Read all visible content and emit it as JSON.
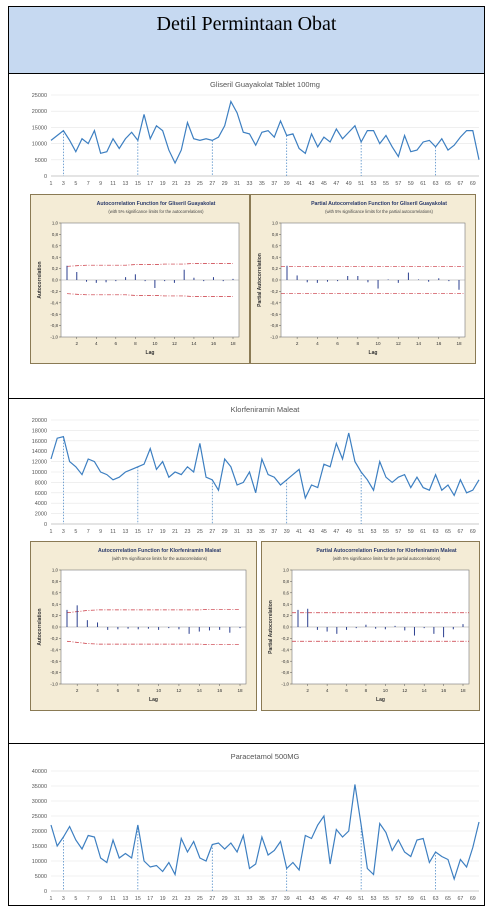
{
  "header": {
    "title": "Detil Permintaan Obat"
  },
  "chart_data": [
    {
      "type": "line",
      "title": "Gliseril Guayakolat Tablet 100mg",
      "ylim": [
        0,
        25000
      ],
      "yticks": [
        0,
        5000,
        10000,
        15000,
        20000,
        25000
      ],
      "xticks": [
        "1",
        "3",
        "5",
        "7",
        "9",
        "11",
        "13",
        "15",
        "17",
        "19",
        "21",
        "23",
        "25",
        "27",
        "29",
        "31",
        "33",
        "35",
        "37",
        "39",
        "41",
        "43",
        "45",
        "47",
        "49",
        "51",
        "53",
        "55",
        "57",
        "59",
        "61",
        "63",
        "65",
        "67",
        "69"
      ],
      "x": [
        1,
        2,
        3,
        4,
        5,
        6,
        7,
        8,
        9,
        10,
        11,
        12,
        13,
        14,
        15,
        16,
        17,
        18,
        19,
        20,
        21,
        22,
        23,
        24,
        25,
        26,
        27,
        28,
        29,
        30,
        31,
        32,
        33,
        34,
        35,
        36,
        37,
        38,
        39,
        40,
        41,
        42,
        43,
        44,
        45,
        46,
        47,
        48,
        49,
        50,
        51,
        52,
        53,
        54,
        55,
        56,
        57,
        58,
        59,
        60,
        61,
        62,
        63,
        64,
        65,
        66,
        67,
        68,
        69,
        70
      ],
      "values": [
        11000,
        12500,
        14000,
        11000,
        7500,
        11500,
        10000,
        14000,
        7000,
        7500,
        11500,
        8500,
        11500,
        13500,
        11000,
        19000,
        11500,
        15500,
        14000,
        8000,
        4000,
        8000,
        16500,
        11500,
        11000,
        11500,
        11000,
        12000,
        15500,
        23000,
        19500,
        13500,
        13000,
        9500,
        13500,
        14000,
        12000,
        17000,
        12500,
        13000,
        8500,
        7000,
        13000,
        9000,
        12000,
        10500,
        14500,
        11500,
        13500,
        15500,
        10500,
        14000,
        14000,
        10000,
        12500,
        9000,
        6000,
        12500,
        7500,
        8000,
        10500,
        11000,
        9000,
        11500,
        8000,
        9500,
        12000,
        14000,
        14000,
        5000
      ],
      "dashed_at": [
        3,
        15,
        27,
        39,
        51,
        63
      ],
      "series": [
        {
          "color": "#3d7fc1"
        }
      ]
    },
    {
      "type": "bar",
      "title": "Autocorrelation Function for Gliseril Guayakolat",
      "subtitle": "(with 5% significance limits for the autocorrelations)",
      "ylabel": "Autocorrelation",
      "xlabel": "Lag",
      "ylim": [
        -1.0,
        1.0
      ],
      "yticks": [
        "-1,0",
        "-0,8",
        "-0,6",
        "-0,4",
        "-0,2",
        "0,0",
        "0,2",
        "0,4",
        "0,6",
        "0,8",
        "1,0"
      ],
      "xticks": [
        "2",
        "4",
        "6",
        "8",
        "10",
        "12",
        "14",
        "16",
        "18"
      ],
      "lags": [
        1,
        2,
        3,
        4,
        5,
        6,
        7,
        8,
        9,
        10,
        11,
        12,
        13,
        14,
        15,
        16,
        17,
        18
      ],
      "values": [
        0.25,
        0.14,
        -0.03,
        -0.05,
        -0.04,
        -0.02,
        0.05,
        0.1,
        -0.02,
        -0.14,
        -0.02,
        -0.05,
        0.18,
        0.04,
        -0.02,
        0.05,
        -0.02,
        0.02
      ],
      "limits": [
        0.24,
        0.25,
        0.26,
        0.26,
        0.26,
        0.26,
        0.26,
        0.27,
        0.27,
        0.27,
        0.28,
        0.28,
        0.28,
        0.29,
        0.29,
        0.29,
        0.29,
        0.29
      ]
    },
    {
      "type": "bar",
      "title": "Partial Autocorrelation Function for Gliseril Guayakolat",
      "subtitle": "(with 5% significance limits for the partial autocorrelations)",
      "ylabel": "Partial Autocorrelation",
      "xlabel": "Lag",
      "ylim": [
        -1.0,
        1.0
      ],
      "yticks": [
        "-1,0",
        "-0,8",
        "-0,6",
        "-0,4",
        "-0,2",
        "0,0",
        "0,2",
        "0,4",
        "0,6",
        "0,8",
        "1,0"
      ],
      "xticks": [
        "2",
        "4",
        "6",
        "8",
        "10",
        "12",
        "14",
        "16",
        "18"
      ],
      "lags": [
        1,
        2,
        3,
        4,
        5,
        6,
        7,
        8,
        9,
        10,
        11,
        12,
        13,
        14,
        15,
        16,
        17,
        18
      ],
      "values": [
        0.25,
        0.08,
        -0.04,
        -0.05,
        -0.03,
        -0.02,
        0.07,
        0.07,
        -0.04,
        -0.15,
        0.01,
        -0.05,
        0.13,
        0.01,
        -0.03,
        0.03,
        -0.02,
        -0.17
      ],
      "limit": 0.24
    },
    {
      "type": "line",
      "title": "Klorfeniramin Maleat",
      "ylim": [
        0,
        20000
      ],
      "yticks": [
        0,
        2000,
        4000,
        6000,
        8000,
        10000,
        12000,
        14000,
        16000,
        18000,
        20000
      ],
      "xticks": [
        "1",
        "3",
        "5",
        "7",
        "9",
        "11",
        "13",
        "15",
        "17",
        "19",
        "21",
        "23",
        "25",
        "27",
        "29",
        "31",
        "33",
        "35",
        "37",
        "39",
        "41",
        "43",
        "45",
        "47",
        "49",
        "51",
        "53",
        "55",
        "57",
        "59",
        "61",
        "63",
        "65",
        "67",
        "69"
      ],
      "x": [
        1,
        2,
        3,
        4,
        5,
        6,
        7,
        8,
        9,
        10,
        11,
        12,
        13,
        14,
        15,
        16,
        17,
        18,
        19,
        20,
        21,
        22,
        23,
        24,
        25,
        26,
        27,
        28,
        29,
        30,
        31,
        32,
        33,
        34,
        35,
        36,
        37,
        38,
        39,
        40,
        41,
        42,
        43,
        44,
        45,
        46,
        47,
        48,
        49,
        50,
        51,
        52,
        53,
        54,
        55,
        56,
        57,
        58,
        59,
        60,
        61,
        62,
        63,
        64,
        65,
        66,
        67,
        68,
        69,
        70
      ],
      "values": [
        12500,
        16500,
        16800,
        12000,
        11000,
        9500,
        12500,
        12000,
        10000,
        9500,
        8500,
        9000,
        10000,
        10500,
        11000,
        11500,
        14500,
        10500,
        12000,
        9000,
        10000,
        9500,
        11000,
        10000,
        15500,
        9000,
        8500,
        6500,
        12500,
        11000,
        7500,
        8000,
        10000,
        6000,
        12500,
        9500,
        9000,
        7500,
        8500,
        9500,
        10500,
        5000,
        7500,
        7000,
        11500,
        11000,
        15500,
        12500,
        17500,
        12000,
        10000,
        8500,
        6500,
        12000,
        9000,
        8000,
        9000,
        9500,
        7000,
        9000,
        7000,
        6500,
        9500,
        6500,
        7500,
        5500,
        8500,
        6000,
        6500,
        8500
      ],
      "dashed_at": [
        3,
        15,
        27,
        39,
        51
      ],
      "series": [
        {
          "color": "#3d7fc1"
        }
      ]
    },
    {
      "type": "bar",
      "title": "Autocorrelation Function for Klorfeniramin Maleat",
      "subtitle": "(with 5% significance limits for the autocorrelations)",
      "ylabel": "Autocorrelation",
      "xlabel": "Lag",
      "ylim": [
        -1.0,
        1.0
      ],
      "yticks": [
        "-1,0",
        "-0,8",
        "-0,6",
        "-0,4",
        "-0,2",
        "0,0",
        "0,2",
        "0,4",
        "0,6",
        "0,8",
        "1,0"
      ],
      "xticks": [
        "2",
        "4",
        "6",
        "8",
        "10",
        "12",
        "14",
        "16",
        "18"
      ],
      "lags": [
        1,
        2,
        3,
        4,
        5,
        6,
        7,
        8,
        9,
        10,
        11,
        12,
        13,
        14,
        15,
        16,
        17,
        18
      ],
      "values": [
        0.3,
        0.38,
        0.12,
        0.08,
        -0.05,
        -0.04,
        -0.03,
        -0.04,
        -0.03,
        -0.05,
        -0.02,
        -0.04,
        -0.12,
        -0.08,
        -0.06,
        -0.05,
        -0.1,
        -0.02
      ],
      "limits": [
        0.25,
        0.27,
        0.29,
        0.3,
        0.3,
        0.3,
        0.3,
        0.3,
        0.3,
        0.3,
        0.3,
        0.3,
        0.3,
        0.3,
        0.31,
        0.31,
        0.31,
        0.31
      ]
    },
    {
      "type": "bar",
      "title": "Partial Autocorrelation Function for Klorfeniramin Maleat",
      "subtitle": "(with 5% significance limits for the partial autocorrelations)",
      "ylabel": "Partial Autocorrelation",
      "xlabel": "Lag",
      "ylim": [
        -1.0,
        1.0
      ],
      "yticks": [
        "-1,0",
        "-0,8",
        "-0,6",
        "-0,4",
        "-0,2",
        "0,0",
        "0,2",
        "0,4",
        "0,6",
        "0,8",
        "1,0"
      ],
      "xticks": [
        "2",
        "4",
        "6",
        "8",
        "10",
        "12",
        "14",
        "16",
        "18"
      ],
      "lags": [
        1,
        2,
        3,
        4,
        5,
        6,
        7,
        8,
        9,
        10,
        11,
        12,
        13,
        14,
        15,
        16,
        17,
        18
      ],
      "values": [
        0.3,
        0.32,
        -0.05,
        -0.08,
        -0.12,
        -0.05,
        -0.02,
        0.04,
        -0.03,
        -0.04,
        0.02,
        -0.06,
        -0.15,
        -0.02,
        -0.12,
        -0.18,
        -0.04,
        0.05
      ],
      "limit": 0.25
    },
    {
      "type": "line",
      "title": "Paracetamol 500MG",
      "ylim": [
        0,
        40000
      ],
      "yticks": [
        0,
        5000,
        10000,
        15000,
        20000,
        25000,
        30000,
        35000,
        40000
      ],
      "xticks": [
        "1",
        "3",
        "5",
        "7",
        "9",
        "11",
        "13",
        "15",
        "17",
        "19",
        "21",
        "23",
        "25",
        "27",
        "29",
        "31",
        "33",
        "35",
        "37",
        "39",
        "41",
        "43",
        "45",
        "47",
        "49",
        "51",
        "53",
        "55",
        "57",
        "59",
        "61",
        "63",
        "65",
        "67",
        "69"
      ],
      "x": [
        1,
        2,
        3,
        4,
        5,
        6,
        7,
        8,
        9,
        10,
        11,
        12,
        13,
        14,
        15,
        16,
        17,
        18,
        19,
        20,
        21,
        22,
        23,
        24,
        25,
        26,
        27,
        28,
        29,
        30,
        31,
        32,
        33,
        34,
        35,
        36,
        37,
        38,
        39,
        40,
        41,
        42,
        43,
        44,
        45,
        46,
        47,
        48,
        49,
        50,
        51,
        52,
        53,
        54,
        55,
        56,
        57,
        58,
        59,
        60,
        61,
        62,
        63,
        64,
        65,
        66,
        67,
        68,
        69,
        70
      ],
      "values": [
        22000,
        15000,
        18000,
        21500,
        17000,
        14000,
        18500,
        18000,
        11000,
        9500,
        17000,
        11000,
        12500,
        11000,
        22000,
        10000,
        8000,
        8500,
        6500,
        9500,
        5500,
        17500,
        13000,
        16500,
        11000,
        10000,
        15500,
        16000,
        14000,
        16000,
        13000,
        18500,
        7500,
        9000,
        18000,
        12000,
        13500,
        16500,
        7500,
        9500,
        7000,
        18500,
        17500,
        22000,
        25000,
        9000,
        20500,
        18000,
        20000,
        35500,
        22000,
        7500,
        5500,
        22500,
        19500,
        13500,
        17000,
        13000,
        11500,
        17000,
        17500,
        9500,
        13000,
        11500,
        10500,
        4000,
        10500,
        8000,
        14500,
        23000
      ],
      "dashed_at": [
        3,
        15,
        27,
        39,
        51,
        63
      ],
      "series": [
        {
          "color": "#3d7fc1"
        }
      ]
    }
  ]
}
